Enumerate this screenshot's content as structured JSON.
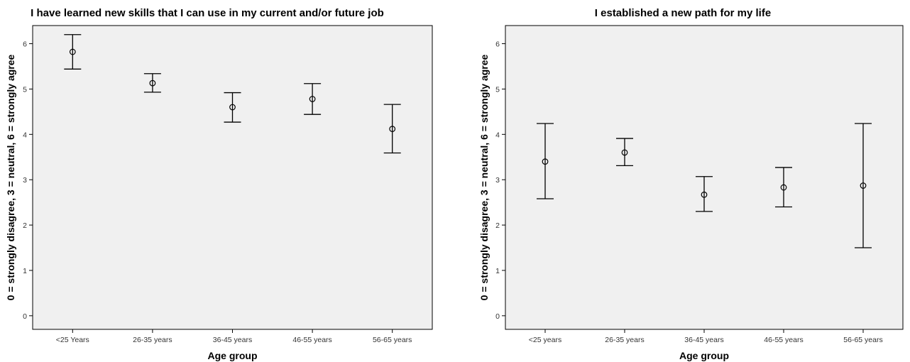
{
  "chart_data": [
    {
      "type": "scatter",
      "title": "I have learned new skills that I can use in my current and/or future job",
      "xlabel": "Age group",
      "ylabel": "0 = strongly disagree, 3 = neutral, 6 = strongly agree",
      "categories": [
        "<25 Years",
        "26-35 years",
        "36-45 years",
        "46-55 years",
        "56-65 years"
      ],
      "mean": [
        5.82,
        5.13,
        4.6,
        4.78,
        4.12
      ],
      "lower": [
        5.44,
        4.93,
        4.27,
        4.44,
        3.59
      ],
      "upper": [
        6.2,
        5.34,
        4.92,
        5.12,
        4.66
      ],
      "ylim": [
        -0.3,
        6.4
      ],
      "yticks": [
        0,
        1,
        2,
        3,
        4,
        5,
        6
      ],
      "grid": false
    },
    {
      "type": "scatter",
      "title": "I established a new path for my life",
      "xlabel": "Age group",
      "ylabel": "0 = strongly disagree, 3 = neutral, 6 = strongly agree",
      "categories": [
        "<25 years",
        "26-35 years",
        "36-45 years",
        "46-55 years",
        "56-65 years"
      ],
      "mean": [
        3.4,
        3.6,
        2.67,
        2.83,
        2.87
      ],
      "lower": [
        2.58,
        3.31,
        2.3,
        2.4,
        1.5
      ],
      "upper": [
        4.24,
        3.91,
        3.07,
        3.27,
        4.24
      ],
      "ylim": [
        -0.3,
        6.4
      ],
      "yticks": [
        0,
        1,
        2,
        3,
        4,
        5,
        6
      ],
      "grid": false
    }
  ]
}
